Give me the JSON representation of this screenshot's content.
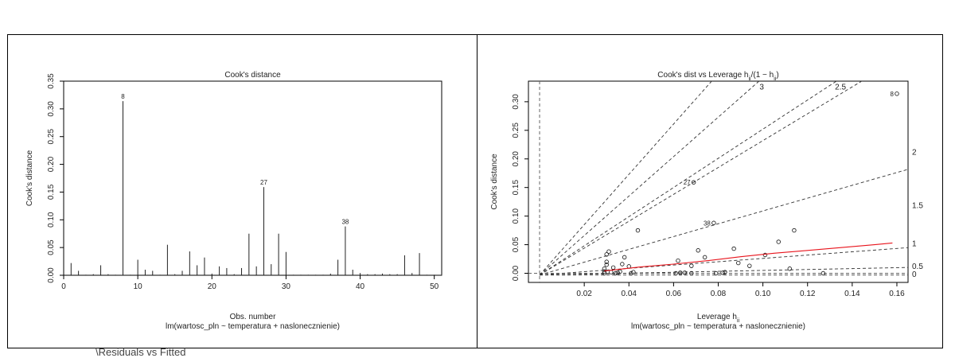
{
  "caption": "\\Residuals vs Fitted",
  "chart_data": [
    {
      "type": "bar",
      "title": "Cook's distance",
      "xlabel": "Obs. number",
      "ylabel": "Cook's distance",
      "subtitle": "lm(wartosc_pln ~ temperatura + naslonecznienie)",
      "xlim": [
        0,
        51
      ],
      "ylim": [
        0,
        0.35
      ],
      "x_ticks": [
        0,
        10,
        20,
        30,
        40,
        50
      ],
      "y_ticks": [
        0.0,
        0.05,
        0.1,
        0.15,
        0.2,
        0.25,
        0.3,
        0.35
      ],
      "x_tick_labels": [
        "0",
        "10",
        "20",
        "30",
        "40",
        "50"
      ],
      "y_tick_labels": [
        "0.00",
        "0.05",
        "0.10",
        "0.15",
        "0.20",
        "0.25",
        "0.30",
        "0.35"
      ],
      "x": [
        1,
        2,
        3,
        4,
        5,
        6,
        7,
        8,
        9,
        10,
        11,
        12,
        13,
        14,
        15,
        16,
        17,
        18,
        19,
        20,
        21,
        22,
        23,
        24,
        25,
        26,
        27,
        28,
        29,
        30,
        31,
        32,
        33,
        34,
        35,
        36,
        37,
        38,
        39,
        40,
        41,
        42,
        43,
        44,
        45,
        46,
        47,
        48,
        49,
        50,
        51
      ],
      "values": [
        0.022,
        0.008,
        0.001,
        0.002,
        0.018,
        0.002,
        0.001,
        0.314,
        0.001,
        0.028,
        0.01,
        0.008,
        0.001,
        0.055,
        0.002,
        0.008,
        0.043,
        0.018,
        0.032,
        0.003,
        0.016,
        0.013,
        0.002,
        0.013,
        0.075,
        0.016,
        0.159,
        0.02,
        0.075,
        0.042,
        0.001,
        0.001,
        0.001,
        0.001,
        0.001,
        0.003,
        0.028,
        0.088,
        0.01,
        0.004,
        0.002,
        0.002,
        0.003,
        0.002,
        0.002,
        0.036,
        0.004,
        0.04,
        0.001,
        0.001,
        0.001
      ],
      "labels": [
        {
          "x": 8,
          "text": "8"
        },
        {
          "x": 27,
          "text": "27"
        },
        {
          "x": 38,
          "text": "38"
        }
      ],
      "grid": false
    },
    {
      "type": "scatter",
      "title_main": "Cook's dist vs Leverage",
      "title_formula": "h",
      "title_sub": "ii",
      "title_tail": "/(1 − h",
      "title_tail_sub": "ii",
      "title_end": ")",
      "xlabel": "Leverage",
      "xlabel_sym": "h",
      "xlabel_sub": "ii",
      "ylabel": "Cook's distance",
      "subtitle": "lm(wartosc_pln ~ temperatura + naslonecznienie)",
      "xlim": [
        -0.005,
        0.165
      ],
      "ylim": [
        -0.016,
        0.336
      ],
      "x_ticks": [
        0.02,
        0.04,
        0.06,
        0.08,
        0.1,
        0.12,
        0.14,
        0.16
      ],
      "x_tick_labels": [
        "0.02",
        "0.04",
        "0.06",
        "0.08",
        "0.10",
        "0.12",
        "0.14",
        "0.16"
      ],
      "y_ticks": [
        0.0,
        0.05,
        0.1,
        0.15,
        0.2,
        0.25,
        0.3
      ],
      "y_tick_labels": [
        "0.00",
        "0.05",
        "0.10",
        "0.15",
        "0.20",
        "0.25",
        "0.30"
      ],
      "points": [
        [
          0.029,
          0.0
        ],
        [
          0.029,
          0.003
        ],
        [
          0.029,
          0.008
        ],
        [
          0.03,
          0.015
        ],
        [
          0.03,
          0.02
        ],
        [
          0.031,
          0.038
        ],
        [
          0.03,
          0.033
        ],
        [
          0.032,
          0.002
        ],
        [
          0.033,
          0.01
        ],
        [
          0.034,
          0.0
        ],
        [
          0.035,
          0.001
        ],
        [
          0.036,
          0.003
        ],
        [
          0.037,
          0.016
        ],
        [
          0.038,
          0.028
        ],
        [
          0.04,
          0.012
        ],
        [
          0.041,
          0.0
        ],
        [
          0.042,
          0.002
        ],
        [
          0.044,
          0.075
        ],
        [
          0.061,
          0.0
        ],
        [
          0.062,
          0.022
        ],
        [
          0.063,
          0.001
        ],
        [
          0.065,
          0.001
        ],
        [
          0.068,
          0.0
        ],
        [
          0.068,
          0.013
        ],
        [
          0.069,
          0.159
        ],
        [
          0.071,
          0.04
        ],
        [
          0.074,
          0.028
        ],
        [
          0.078,
          0.088
        ],
        [
          0.079,
          0.0
        ],
        [
          0.082,
          0.001
        ],
        [
          0.083,
          0.002
        ],
        [
          0.087,
          0.043
        ],
        [
          0.089,
          0.018
        ],
        [
          0.094,
          0.013
        ],
        [
          0.101,
          0.032
        ],
        [
          0.107,
          0.055
        ],
        [
          0.112,
          0.008
        ],
        [
          0.114,
          0.075
        ],
        [
          0.127,
          0.0
        ],
        [
          0.16,
          0.314
        ]
      ],
      "point_labels": [
        {
          "x": 0.16,
          "y": 0.314,
          "text": "8"
        },
        {
          "x": 0.069,
          "y": 0.159,
          "text": "27"
        },
        {
          "x": 0.078,
          "y": 0.088,
          "text": "38"
        }
      ],
      "smooth": [
        [
          0.029,
          0.004
        ],
        [
          0.045,
          0.011
        ],
        [
          0.06,
          0.016
        ],
        [
          0.075,
          0.022
        ],
        [
          0.09,
          0.029
        ],
        [
          0.105,
          0.035
        ],
        [
          0.12,
          0.04
        ],
        [
          0.135,
          0.045
        ],
        [
          0.15,
          0.05
        ],
        [
          0.158,
          0.053
        ]
      ],
      "contour_slopes": [
        {
          "slope": 4.4,
          "label": ""
        },
        {
          "slope": 3.45,
          "label": "3"
        },
        {
          "slope": 2.55,
          "label": "2.5"
        },
        {
          "slope": 2.35,
          "label": ""
        },
        {
          "slope": 1.12,
          "label": "2"
        },
        {
          "slope": 0.29,
          "label": "1"
        },
        {
          "slope": 0.08,
          "label": "0.5"
        },
        {
          "slope": 0.0,
          "label": "0"
        }
      ],
      "right_labels": [
        {
          "y": 0.213,
          "text": "2"
        },
        {
          "y": 0.12,
          "text": "1.5"
        },
        {
          "y": 0.053,
          "text": "1"
        },
        {
          "y": 0.013,
          "text": "0.5"
        },
        {
          "y": -0.001,
          "text": "0"
        }
      ],
      "smooth_color": "#e8141c",
      "grid": false
    }
  ]
}
